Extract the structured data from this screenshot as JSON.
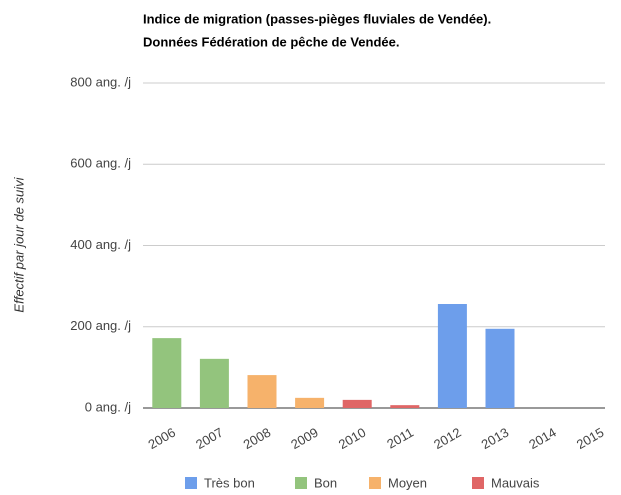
{
  "chart_data": {
    "type": "bar",
    "title": "Indice de migration (passes-pièges fluviales de Vendée).",
    "subtitle": "Données Fédération de pêche de Vendée.",
    "y_label": "Effectif par jour de suivi",
    "categories": [
      "2006",
      "2007",
      "2008",
      "2009",
      "2010",
      "2011",
      "2012",
      "2013",
      "2014",
      "2015"
    ],
    "series": [
      {
        "name": "Très bon",
        "color": "#6d9eeb",
        "values": [
          null,
          null,
          null,
          null,
          null,
          null,
          256,
          195,
          null,
          null
        ]
      },
      {
        "name": "Bon",
        "color": "#93c47d",
        "values": [
          172,
          121,
          null,
          null,
          null,
          null,
          null,
          null,
          null,
          null
        ]
      },
      {
        "name": "Moyen",
        "color": "#f6b26b",
        "values": [
          null,
          null,
          81,
          25,
          null,
          null,
          null,
          null,
          null,
          null
        ]
      },
      {
        "name": "Mauvais",
        "color": "#e06666",
        "values": [
          null,
          null,
          null,
          null,
          20,
          7,
          null,
          null,
          null,
          null
        ]
      }
    ],
    "ylim": [
      0,
      800
    ],
    "yticks": [
      {
        "value": 0,
        "label": "0 ang. /j"
      },
      {
        "value": 200,
        "label": "200 ang. /j"
      },
      {
        "value": 400,
        "label": "400 ang. /j"
      },
      {
        "value": 600,
        "label": "600 ang. /j"
      },
      {
        "value": 800,
        "label": "800 ang. /j"
      }
    ],
    "grid": true,
    "legend": "bottom"
  }
}
